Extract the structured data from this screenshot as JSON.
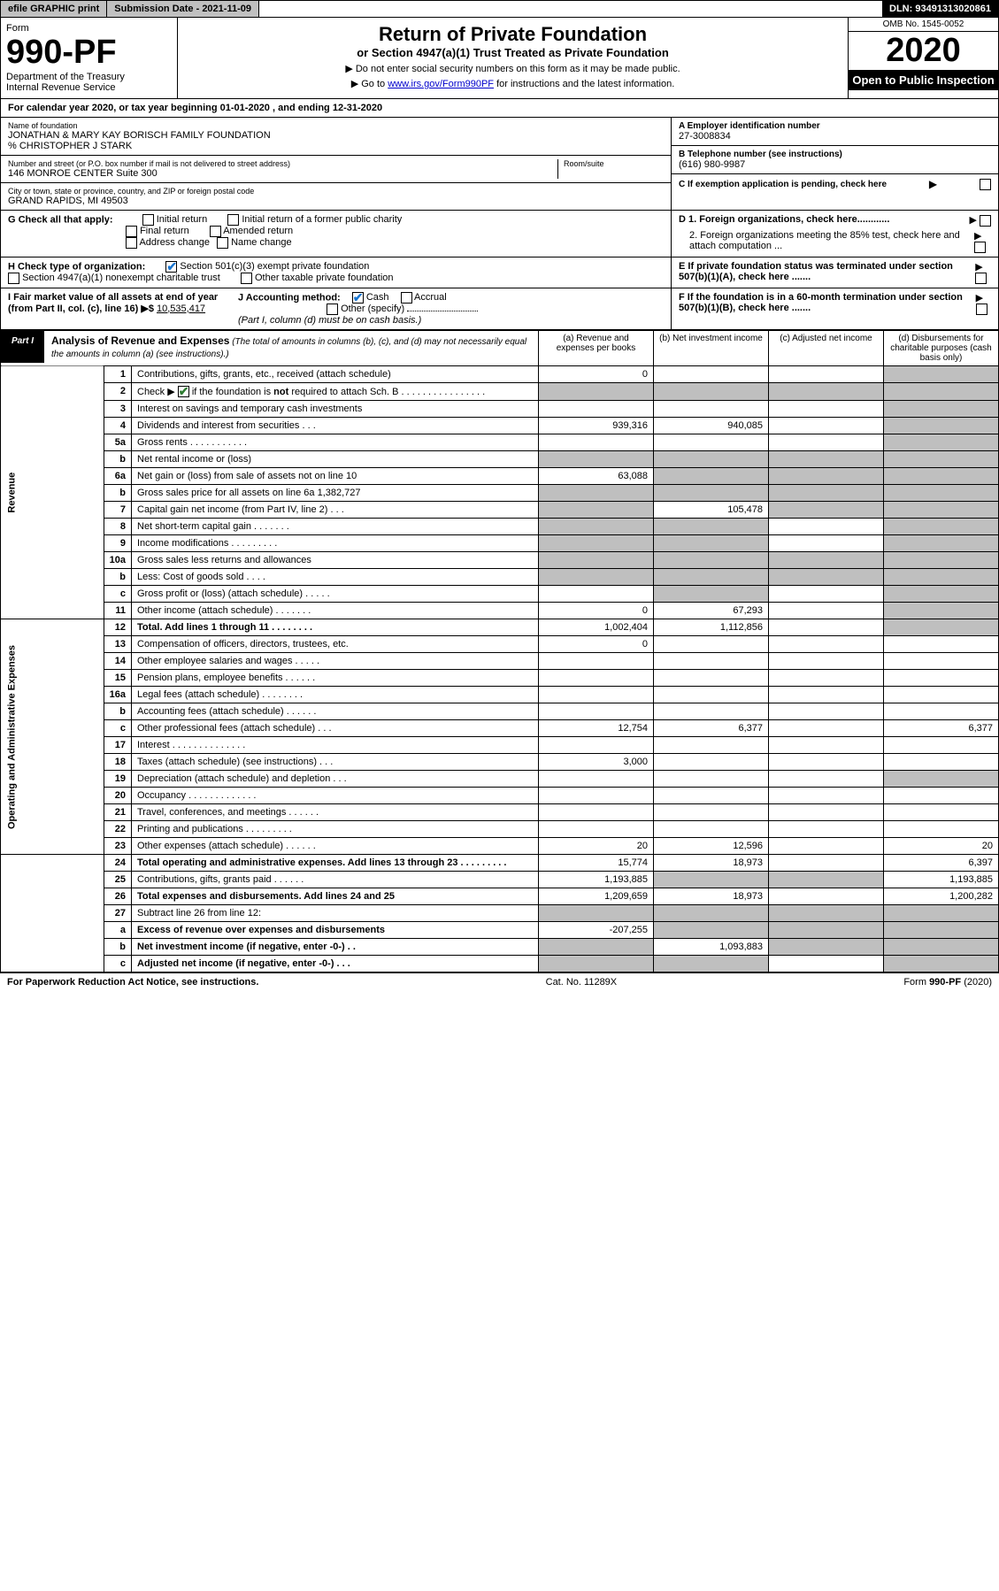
{
  "topbar": {
    "efile": "efile GRAPHIC print",
    "submission": "Submission Date - 2021-11-09",
    "dln": "DLN: 93491313020861"
  },
  "header": {
    "form_label": "Form",
    "form_num": "990-PF",
    "dept": "Department of the Treasury",
    "irs": "Internal Revenue Service",
    "title": "Return of Private Foundation",
    "subtitle": "or Section 4947(a)(1) Trust Treated as Private Foundation",
    "note1": "▶ Do not enter social security numbers on this form as it may be made public.",
    "note2_pre": "▶ Go to ",
    "note2_link": "www.irs.gov/Form990PF",
    "note2_post": " for instructions and the latest information.",
    "omb": "OMB No. 1545-0052",
    "year": "2020",
    "inspect": "Open to Public Inspection"
  },
  "calyear": {
    "pre": "For calendar year 2020, or tax year beginning ",
    "begin": "01-01-2020",
    "mid": " , and ending ",
    "end": "12-31-2020"
  },
  "info": {
    "name_lbl": "Name of foundation",
    "name": "JONATHAN & MARY KAY BORISCH FAMILY FOUNDATION",
    "care": "% CHRISTOPHER J STARK",
    "addr_lbl": "Number and street (or P.O. box number if mail is not delivered to street address)",
    "addr": "146 MONROE CENTER Suite 300",
    "room_lbl": "Room/suite",
    "city_lbl": "City or town, state or province, country, and ZIP or foreign postal code",
    "city": "GRAND RAPIDS, MI  49503",
    "a_lbl": "A Employer identification number",
    "a_val": "27-3008834",
    "b_lbl": "B Telephone number (see instructions)",
    "b_val": "(616) 980-9987",
    "c_lbl": "C If exemption application is pending, check here",
    "d1_lbl": "D 1. Foreign organizations, check here............",
    "d2_lbl": "2. Foreign organizations meeting the 85% test, check here and attach computation ...",
    "e_lbl": "E  If private foundation status was terminated under section 507(b)(1)(A), check here .......",
    "f_lbl": "F  If the foundation is in a 60-month termination under section 507(b)(1)(B), check here .......",
    "g_lbl": "G Check all that apply:",
    "g_opts": [
      "Initial return",
      "Initial return of a former public charity",
      "Final return",
      "Amended return",
      "Address change",
      "Name change"
    ],
    "h_lbl": "H Check type of organization:",
    "h_opts": [
      "Section 501(c)(3) exempt private foundation",
      "Section 4947(a)(1) nonexempt charitable trust",
      "Other taxable private foundation"
    ],
    "i_lbl": "I Fair market value of all assets at end of year (from Part II, col. (c), line 16) ▶$ ",
    "i_val": "10,535,417",
    "j_lbl": "J Accounting method:",
    "j_cash": "Cash",
    "j_accrual": "Accrual",
    "j_other": "Other (specify)",
    "j_note": "(Part I, column (d) must be on cash basis.)"
  },
  "part1": {
    "tag": "Part I",
    "title": "Analysis of Revenue and Expenses",
    "title_note": " (The total of amounts in columns (b), (c), and (d) may not necessarily equal the amounts in column (a) (see instructions).)",
    "cols": {
      "a": "(a) Revenue and expenses per books",
      "b": "(b) Net investment income",
      "c": "(c) Adjusted net income",
      "d": "(d) Disbursements for charitable purposes (cash basis only)"
    }
  },
  "sidelabels": {
    "rev": "Revenue",
    "exp": "Operating and Administrative Expenses"
  },
  "rows": [
    {
      "n": "1",
      "lbl": "Contributions, gifts, grants, etc., received (attach schedule)",
      "a": "0",
      "b": "",
      "c": "",
      "d": "shaded"
    },
    {
      "n": "2",
      "lbl": "Check ▶ ☑ if the foundation is not required to attach Sch. B   .  .  .  .  .  .  .  .  .  .  .  .  .  .  .  .",
      "a": "shaded",
      "b": "shaded",
      "c": "shaded",
      "d": "shaded",
      "checked": true
    },
    {
      "n": "3",
      "lbl": "Interest on savings and temporary cash investments",
      "a": "",
      "b": "",
      "c": "",
      "d": "shaded"
    },
    {
      "n": "4",
      "lbl": "Dividends and interest from securities   .   .   .",
      "a": "939,316",
      "b": "940,085",
      "c": "",
      "d": "shaded"
    },
    {
      "n": "5a",
      "lbl": "Gross rents   .   .   .   .   .   .   .   .   .   .   .",
      "a": "",
      "b": "",
      "c": "",
      "d": "shaded"
    },
    {
      "n": "b",
      "lbl": "Net rental income or (loss)  ",
      "a": "shaded",
      "b": "shaded",
      "c": "shaded",
      "d": "shaded"
    },
    {
      "n": "6a",
      "lbl": "Net gain or (loss) from sale of assets not on line 10",
      "a": "63,088",
      "b": "shaded",
      "c": "shaded",
      "d": "shaded"
    },
    {
      "n": "b",
      "lbl": "Gross sales price for all assets on line 6a            1,382,727",
      "a": "shaded",
      "b": "shaded",
      "c": "shaded",
      "d": "shaded"
    },
    {
      "n": "7",
      "lbl": "Capital gain net income (from Part IV, line 2)   .   .   .",
      "a": "shaded",
      "b": "105,478",
      "c": "shaded",
      "d": "shaded"
    },
    {
      "n": "8",
      "lbl": "Net short-term capital gain   .   .   .   .   .   .   .",
      "a": "shaded",
      "b": "shaded",
      "c": "",
      "d": "shaded"
    },
    {
      "n": "9",
      "lbl": "Income modifications   .   .   .   .   .   .   .   .   .",
      "a": "shaded",
      "b": "shaded",
      "c": "",
      "d": "shaded"
    },
    {
      "n": "10a",
      "lbl": "Gross sales less returns and allowances",
      "a": "shaded",
      "b": "shaded",
      "c": "shaded",
      "d": "shaded"
    },
    {
      "n": "b",
      "lbl": "Less: Cost of goods sold    .   .   .   .",
      "a": "shaded",
      "b": "shaded",
      "c": "shaded",
      "d": "shaded"
    },
    {
      "n": "c",
      "lbl": "Gross profit or (loss) (attach schedule)    .   .   .   .   .",
      "a": "",
      "b": "shaded",
      "c": "",
      "d": "shaded"
    },
    {
      "n": "11",
      "lbl": "Other income (attach schedule)   .   .   .   .   .   .   .",
      "a": "0",
      "b": "67,293",
      "c": "",
      "d": "shaded"
    },
    {
      "n": "12",
      "lbl": "Total. Add lines 1 through 11   .   .   .   .   .   .   .   .",
      "a": "1,002,404",
      "b": "1,112,856",
      "c": "",
      "d": "shaded",
      "bold": true
    },
    {
      "n": "13",
      "lbl": "Compensation of officers, directors, trustees, etc.",
      "a": "0",
      "b": "",
      "c": "",
      "d": ""
    },
    {
      "n": "14",
      "lbl": "Other employee salaries and wages   .   .   .   .   .",
      "a": "",
      "b": "",
      "c": "",
      "d": ""
    },
    {
      "n": "15",
      "lbl": "Pension plans, employee benefits   .   .   .   .   .   .",
      "a": "",
      "b": "",
      "c": "",
      "d": ""
    },
    {
      "n": "16a",
      "lbl": "Legal fees (attach schedule)   .   .   .   .   .   .   .   .",
      "a": "",
      "b": "",
      "c": "",
      "d": ""
    },
    {
      "n": "b",
      "lbl": "Accounting fees (attach schedule)   .   .   .   .   .   .",
      "a": "",
      "b": "",
      "c": "",
      "d": ""
    },
    {
      "n": "c",
      "lbl": "Other professional fees (attach schedule)   .   .   .",
      "a": "12,754",
      "b": "6,377",
      "c": "",
      "d": "6,377"
    },
    {
      "n": "17",
      "lbl": "Interest   .   .   .   .   .   .   .   .   .   .   .   .   .   .",
      "a": "",
      "b": "",
      "c": "",
      "d": ""
    },
    {
      "n": "18",
      "lbl": "Taxes (attach schedule) (see instructions)    .   .   .",
      "a": "3,000",
      "b": "",
      "c": "",
      "d": ""
    },
    {
      "n": "19",
      "lbl": "Depreciation (attach schedule) and depletion   .   .   .",
      "a": "",
      "b": "",
      "c": "",
      "d": "shaded"
    },
    {
      "n": "20",
      "lbl": "Occupancy   .   .   .   .   .   .   .   .   .   .   .   .   .",
      "a": "",
      "b": "",
      "c": "",
      "d": ""
    },
    {
      "n": "21",
      "lbl": "Travel, conferences, and meetings   .   .   .   .   .   .",
      "a": "",
      "b": "",
      "c": "",
      "d": ""
    },
    {
      "n": "22",
      "lbl": "Printing and publications   .   .   .   .   .   .   .   .   .",
      "a": "",
      "b": "",
      "c": "",
      "d": ""
    },
    {
      "n": "23",
      "lbl": "Other expenses (attach schedule)   .   .   .   .   .   .",
      "a": "20",
      "b": "12,596",
      "c": "",
      "d": "20"
    },
    {
      "n": "24",
      "lbl": "Total operating and administrative expenses. Add lines 13 through 23   .   .   .   .   .   .   .   .   .",
      "a": "15,774",
      "b": "18,973",
      "c": "",
      "d": "6,397",
      "bold": true
    },
    {
      "n": "25",
      "lbl": "Contributions, gifts, grants paid    .   .   .   .   .   .",
      "a": "1,193,885",
      "b": "shaded",
      "c": "shaded",
      "d": "1,193,885"
    },
    {
      "n": "26",
      "lbl": "Total expenses and disbursements. Add lines 24 and 25",
      "a": "1,209,659",
      "b": "18,973",
      "c": "",
      "d": "1,200,282",
      "bold": true
    },
    {
      "n": "27",
      "lbl": "Subtract line 26 from line 12:",
      "a": "shaded",
      "b": "shaded",
      "c": "shaded",
      "d": "shaded"
    },
    {
      "n": "a",
      "lbl": "Excess of revenue over expenses and disbursements",
      "a": "-207,255",
      "b": "shaded",
      "c": "shaded",
      "d": "shaded",
      "bold": true
    },
    {
      "n": "b",
      "lbl": "Net investment income (if negative, enter -0-)   .   .",
      "a": "shaded",
      "b": "1,093,883",
      "c": "shaded",
      "d": "shaded",
      "bold": true
    },
    {
      "n": "c",
      "lbl": "Adjusted net income (if negative, enter -0-)   .   .   .",
      "a": "shaded",
      "b": "shaded",
      "c": "",
      "d": "shaded",
      "bold": true
    }
  ],
  "footer": {
    "left": "For Paperwork Reduction Act Notice, see instructions.",
    "mid": "Cat. No. 11289X",
    "right": "Form 990-PF (2020)"
  }
}
